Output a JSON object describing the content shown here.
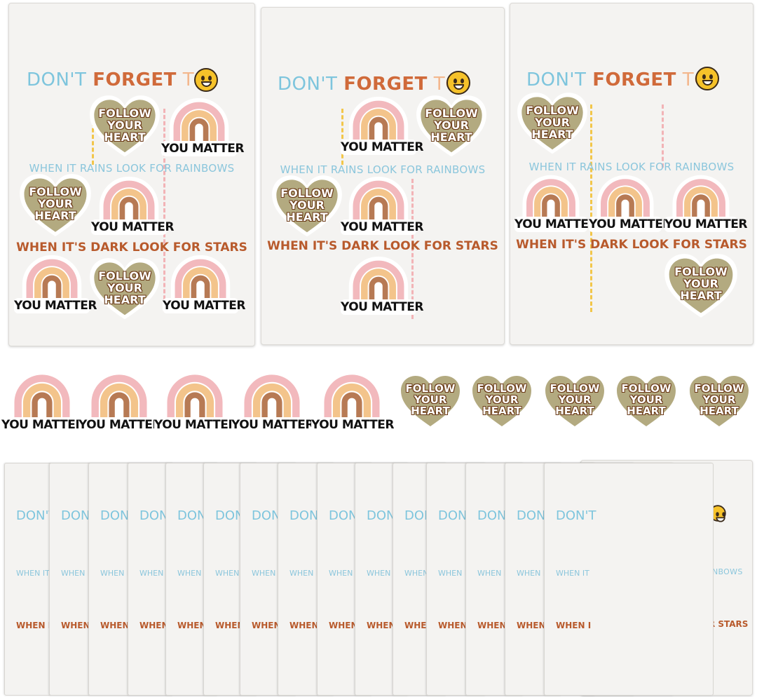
{
  "card": {
    "title_dont": "DON'T",
    "title_forget": "FORGET",
    "title_to": "TO",
    "line_rain": "WHEN IT RAINS LOOK FOR RAINBOWS",
    "line_dark": "WHEN IT'S DARK LOOK FOR STARS"
  },
  "stickers": {
    "rainbow_label": "YOU MATTER",
    "heart_text": "FOLLOW\nYOUR\nHEART"
  },
  "thin_cards": {
    "title_fragment": "DON'T",
    "rain_fragment": "WHEN IT",
    "dark_fragment": "WHEN I"
  },
  "colors": {
    "heart": "#b3aa80",
    "rainbow_outer": "#f2b9bd",
    "rainbow_mid": "#f3c48b",
    "rainbow_inner": "#b77a54",
    "accent_blue": "#7ec5dd",
    "accent_orange": "#d06a3a"
  }
}
